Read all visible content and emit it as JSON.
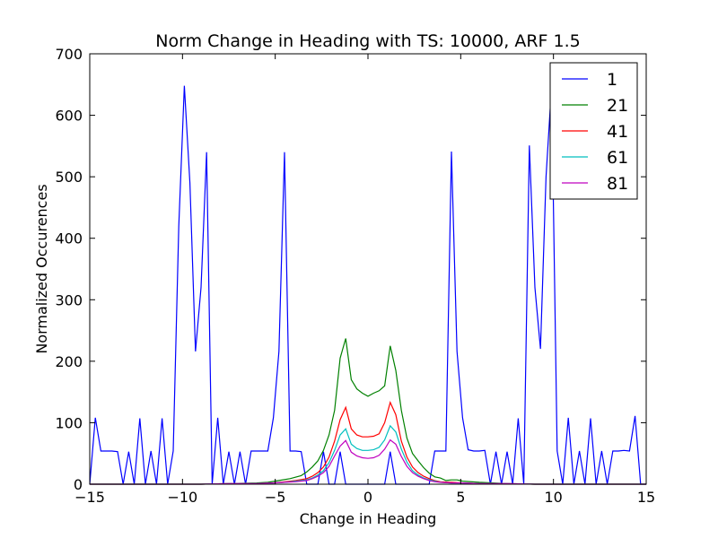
{
  "chart_data": {
    "type": "line",
    "title": "Norm Change in Heading with TS: 10000, ARF 1.5",
    "xlabel": "Change in Heading",
    "ylabel": "Normalized Occurences",
    "xlim": [
      -15,
      15
    ],
    "ylim": [
      0,
      700
    ],
    "xticks": [
      -15,
      -10,
      -5,
      0,
      5,
      10,
      15
    ],
    "yticks": [
      0,
      100,
      200,
      300,
      400,
      500,
      600,
      700
    ],
    "grid": false,
    "legend_position": "top-right",
    "series": [
      {
        "name": "1",
        "color": "#0000ff",
        "x": [
          -15.0,
          -14.7,
          -14.4,
          -14.1,
          -13.8,
          -13.5,
          -13.2,
          -12.9,
          -12.6,
          -12.3,
          -12.0,
          -11.7,
          -11.4,
          -11.1,
          -10.8,
          -10.5,
          -10.2,
          -9.9,
          -9.6,
          -9.3,
          -9.0,
          -8.7,
          -8.4,
          -8.1,
          -7.8,
          -7.5,
          -7.2,
          -6.9,
          -6.6,
          -6.3,
          -6.0,
          -5.7,
          -5.4,
          -5.1,
          -4.8,
          -4.5,
          -4.2,
          -3.9,
          -3.6,
          -3.3,
          -3.0,
          -2.7,
          -2.4,
          -2.1,
          -1.8,
          -1.5,
          -1.2,
          -0.9,
          -0.6,
          -0.3,
          0.0,
          0.3,
          0.6,
          0.9,
          1.2,
          1.5,
          1.8,
          2.1,
          2.4,
          2.7,
          3.0,
          3.3,
          3.6,
          3.9,
          4.2,
          4.5,
          4.8,
          5.1,
          5.4,
          5.7,
          6.0,
          6.3,
          6.6,
          6.9,
          7.2,
          7.5,
          7.8,
          8.1,
          8.4,
          8.7,
          9.0,
          9.3,
          9.6,
          9.9,
          10.2,
          10.5,
          10.8,
          11.1,
          11.4,
          11.7,
          12.0,
          12.3,
          12.6,
          12.9,
          13.2,
          13.5,
          13.8,
          14.1,
          14.4,
          14.7,
          15.0
        ],
        "y": [
          0,
          108,
          54,
          54,
          54,
          53,
          0,
          53,
          0,
          107,
          0,
          54,
          0,
          107,
          0,
          54,
          420,
          648,
          490,
          216,
          320,
          540,
          0,
          108,
          0,
          53,
          0,
          53,
          0,
          54,
          54,
          54,
          54,
          108,
          216,
          540,
          54,
          54,
          53,
          0,
          0,
          0,
          53,
          0,
          0,
          53,
          0,
          0,
          0,
          0,
          0,
          0,
          0,
          0,
          53,
          0,
          0,
          0,
          0,
          0,
          0,
          0,
          54,
          54,
          54,
          541,
          216,
          108,
          56,
          54,
          54,
          55,
          0,
          53,
          0,
          53,
          0,
          107,
          0,
          551,
          320,
          220,
          500,
          648,
          54,
          0,
          108,
          0,
          54,
          0,
          107,
          0,
          54,
          0,
          54,
          54,
          55,
          54,
          111,
          0,
          0
        ]
      },
      {
        "name": "21",
        "color": "#008000",
        "x": [
          -15.0,
          -13.5,
          -12.0,
          -10.5,
          -9.0,
          -7.5,
          -6.0,
          -5.4,
          -4.8,
          -4.2,
          -3.6,
          -3.3,
          -3.0,
          -2.7,
          -2.4,
          -2.1,
          -1.8,
          -1.5,
          -1.2,
          -0.9,
          -0.6,
          -0.3,
          0.0,
          0.3,
          0.6,
          0.9,
          1.2,
          1.5,
          1.8,
          2.1,
          2.4,
          2.7,
          3.0,
          3.3,
          3.6,
          3.9,
          4.2,
          4.5,
          4.8,
          5.1,
          6.0,
          7.5,
          9.0,
          10.5,
          12.0,
          13.5,
          15.0
        ],
        "y": [
          0,
          0,
          0,
          0,
          0,
          1,
          2,
          3,
          6,
          9,
          14,
          20,
          28,
          38,
          55,
          80,
          120,
          205,
          237,
          170,
          155,
          148,
          143,
          148,
          152,
          160,
          225,
          185,
          120,
          75,
          50,
          38,
          27,
          18,
          12,
          10,
          6,
          7,
          7,
          5,
          3,
          1,
          0,
          0,
          0,
          0,
          0
        ]
      },
      {
        "name": "41",
        "color": "#ff0000",
        "x": [
          -15.0,
          -12.0,
          -9.0,
          -7.5,
          -6.0,
          -5.1,
          -4.5,
          -3.9,
          -3.3,
          -3.0,
          -2.7,
          -2.4,
          -2.1,
          -1.8,
          -1.5,
          -1.2,
          -0.9,
          -0.6,
          -0.3,
          0.0,
          0.3,
          0.6,
          0.9,
          1.2,
          1.5,
          1.8,
          2.1,
          2.4,
          2.7,
          3.0,
          3.3,
          3.6,
          3.9,
          4.5,
          5.1,
          6.0,
          7.5,
          9.0,
          12.0,
          15.0
        ],
        "y": [
          0,
          0,
          0,
          1,
          1,
          2,
          4,
          6,
          9,
          13,
          19,
          28,
          44,
          70,
          105,
          125,
          90,
          80,
          77,
          77,
          78,
          82,
          100,
          133,
          113,
          70,
          44,
          28,
          19,
          13,
          9,
          6,
          4,
          3,
          2,
          1,
          1,
          0,
          0,
          0
        ]
      },
      {
        "name": "61",
        "color": "#00bfbf",
        "x": [
          -15.0,
          -12.0,
          -9.0,
          -7.5,
          -6.0,
          -5.1,
          -4.5,
          -3.9,
          -3.3,
          -3.0,
          -2.7,
          -2.4,
          -2.1,
          -1.8,
          -1.5,
          -1.2,
          -0.9,
          -0.6,
          -0.3,
          0.0,
          0.3,
          0.6,
          0.9,
          1.2,
          1.5,
          1.8,
          2.1,
          2.4,
          2.7,
          3.0,
          3.3,
          3.6,
          3.9,
          4.5,
          5.1,
          6.0,
          7.5,
          9.0,
          12.0,
          15.0
        ],
        "y": [
          0,
          0,
          0,
          1,
          1,
          2,
          3,
          5,
          7,
          10,
          15,
          22,
          35,
          55,
          80,
          90,
          65,
          58,
          55,
          55,
          56,
          60,
          72,
          95,
          85,
          57,
          36,
          22,
          15,
          10,
          7,
          5,
          3,
          2,
          2,
          1,
          1,
          0,
          0,
          0
        ]
      },
      {
        "name": "81",
        "color": "#bf00bf",
        "x": [
          -15.0,
          -12.0,
          -9.0,
          -7.5,
          -6.0,
          -5.1,
          -4.5,
          -3.9,
          -3.3,
          -3.0,
          -2.7,
          -2.4,
          -2.1,
          -1.8,
          -1.5,
          -1.2,
          -0.9,
          -0.6,
          -0.3,
          0.0,
          0.3,
          0.6,
          0.9,
          1.2,
          1.5,
          1.8,
          2.1,
          2.4,
          2.7,
          3.0,
          3.3,
          3.6,
          3.9,
          4.5,
          5.1,
          6.0,
          7.5,
          9.0,
          12.0,
          15.0
        ],
        "y": [
          0,
          0,
          0,
          1,
          1,
          2,
          3,
          4,
          6,
          9,
          13,
          19,
          29,
          46,
          62,
          71,
          52,
          46,
          43,
          42,
          43,
          47,
          57,
          72,
          65,
          45,
          29,
          19,
          13,
          9,
          6,
          4,
          3,
          2,
          2,
          1,
          1,
          0,
          0,
          0
        ]
      }
    ]
  }
}
